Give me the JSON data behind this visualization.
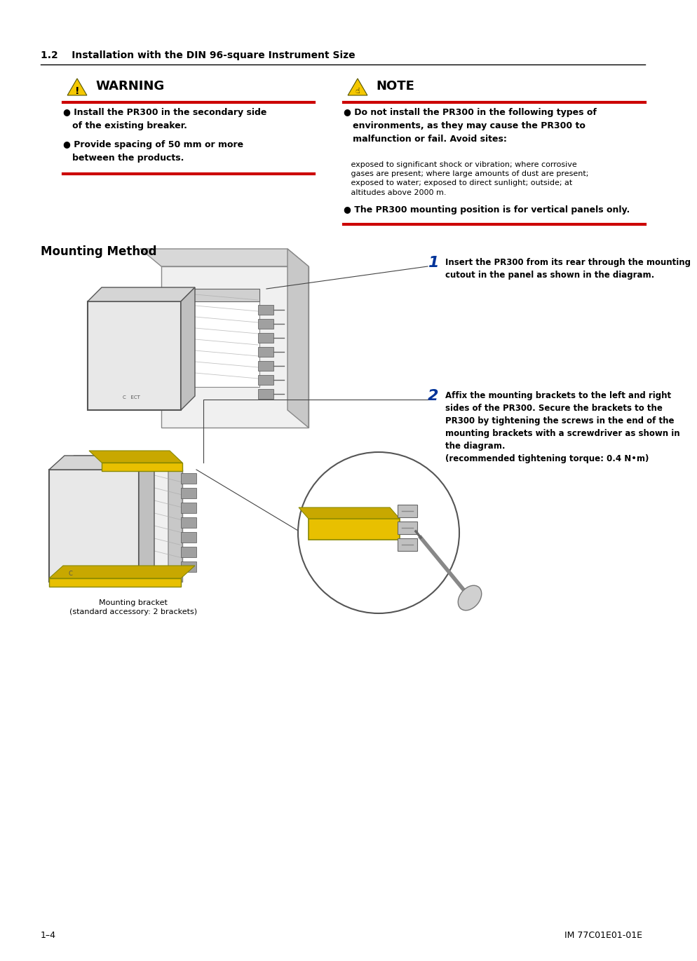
{
  "bg_color": "#ffffff",
  "black": "#000000",
  "red": "#cc0000",
  "yellow": "#f5c800",
  "blue": "#003399",
  "gray_light": "#e0e0e0",
  "gray_mid": "#b0b0b0",
  "gray_dark": "#707070",
  "bracket_yellow": "#e8c000",
  "header_text": "1.2    Installation with the DIN 96-square Instrument Size",
  "warning_title": "WARNING",
  "note_title": "NOTE",
  "warn_b1": "● Install the PR300 in the secondary side\n   of the existing breaker.",
  "warn_b2": "● Provide spacing of 50 mm or more\n   between the products.",
  "note_b1_bold": "● Do not install the PR300 in the following types of\n   environments, as they may cause the PR300 to\n   malfunction or fail. Avoid sites:",
  "note_b1_small": "   exposed to significant shock or vibration; where corrosive\n   gases are present; where large amounts of dust are present;\n   exposed to water; exposed to direct sunlight; outside; at\n   altitudes above 2000 m.",
  "note_b2": "● The PR300 mounting position is for vertical panels only.",
  "mounting_title": "Mounting Method",
  "step1_num": "1",
  "step1_text": "Insert the PR300 from its rear through the mounting\ncutout in the panel as shown in the diagram.",
  "step2_num": "2",
  "step2_text": "Affix the mounting brackets to the left and right\nsides of the PR300. Secure the brackets to the\nPR300 by tightening the screws in the end of the\nmounting brackets with a screwdriver as shown in\nthe diagram.\n(recommended tightening torque: 0.4 N•m)",
  "bracket_label": "Mounting bracket\n(standard accessory: 2 brackets)",
  "footer_left": "1–4",
  "footer_right": "IM 77C01E01-01E"
}
